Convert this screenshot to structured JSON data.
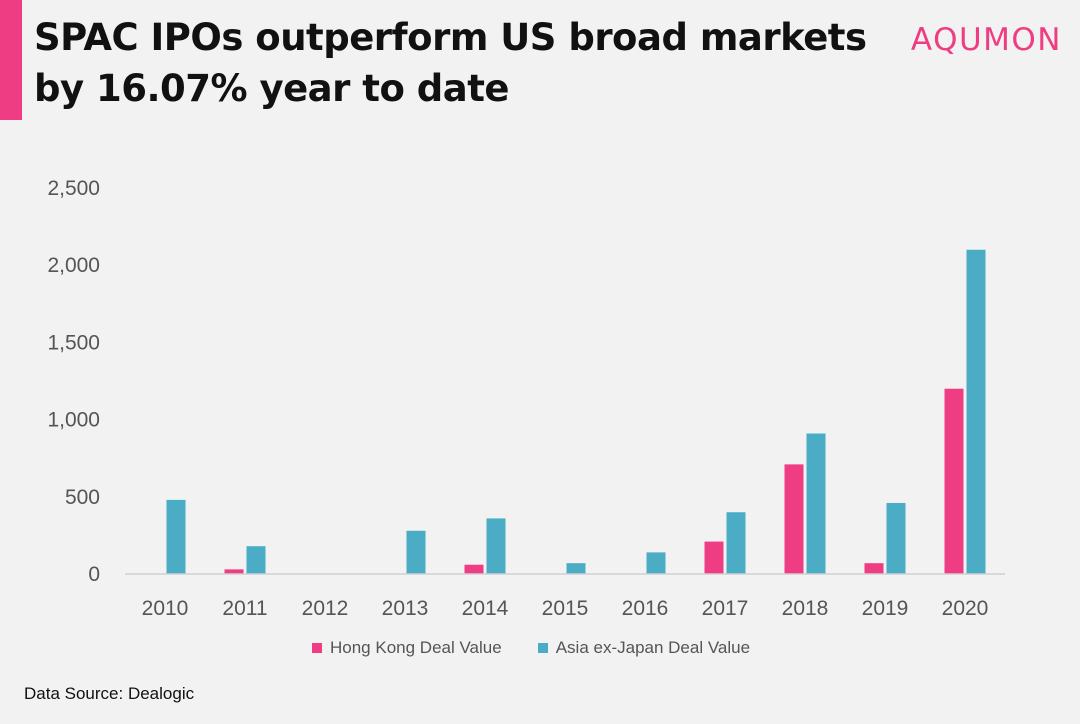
{
  "header": {
    "title": "SPAC IPOs outperform US broad markets by 16.07% year to date",
    "logo": "AQUMON",
    "accent_color": "#ee3d82"
  },
  "footer": {
    "source": "Data Source: Dealogic"
  },
  "chart_data": {
    "type": "bar",
    "title": "",
    "xlabel": "",
    "ylabel": "",
    "categories": [
      "2010",
      "2011",
      "2012",
      "2013",
      "2014",
      "2015",
      "2016",
      "2017",
      "2018",
      "2019",
      "2020"
    ],
    "series": [
      {
        "name": "Hong Kong Deal Value",
        "color": "#ee3d82",
        "values": [
          0,
          30,
          0,
          0,
          60,
          0,
          0,
          210,
          710,
          70,
          1200
        ]
      },
      {
        "name": "Asia ex-Japan Deal Value",
        "color": "#4bacc6",
        "values": [
          480,
          180,
          0,
          280,
          360,
          70,
          140,
          400,
          910,
          460,
          2100
        ]
      }
    ],
    "ylim": [
      0,
      2500
    ],
    "yticks": [
      0,
      500,
      1000,
      1500,
      2000,
      2500
    ],
    "ytick_labels": [
      "0",
      "500",
      "1,000",
      "1,500",
      "2,000",
      "2,500"
    ],
    "grid": false,
    "legend_position": "bottom"
  }
}
